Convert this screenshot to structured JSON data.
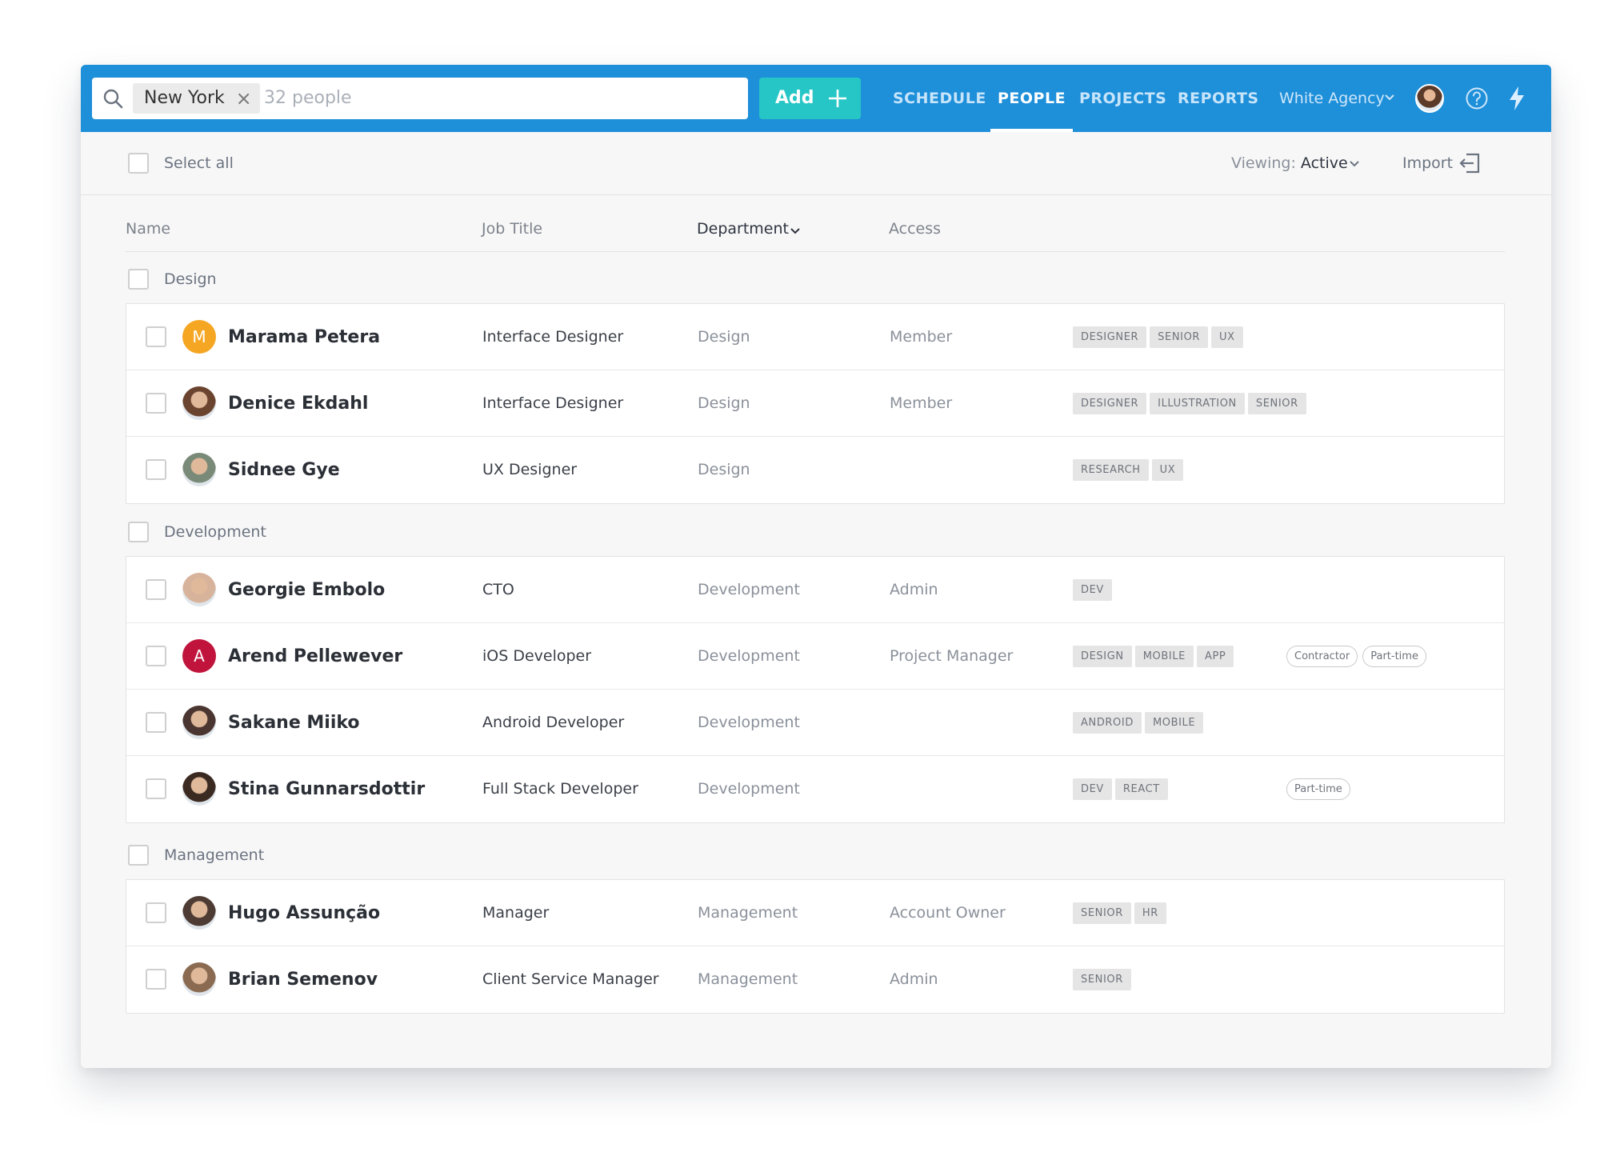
{
  "search": {
    "chip_label": "New York",
    "chip_close": "×",
    "placeholder": "32 people"
  },
  "add_button": {
    "label": "Add"
  },
  "nav": [
    {
      "label": "SCHEDULE",
      "active": false
    },
    {
      "label": "PEOPLE",
      "active": true
    },
    {
      "label": "PROJECTS",
      "active": false
    },
    {
      "label": "REPORTS",
      "active": false
    }
  ],
  "account": {
    "agency": "White Agency"
  },
  "toolbar": {
    "select_all": "Select all",
    "viewing_label": "Viewing:",
    "viewing_value": "Active",
    "import": "Import"
  },
  "columns": {
    "name": "Name",
    "job_title": "Job Title",
    "department": "Department",
    "access": "Access"
  },
  "groups": [
    {
      "title": "Design",
      "people": [
        {
          "name": "Marama Petera",
          "job": "Interface Designer",
          "dept": "Design",
          "access": "Member",
          "avatar_letter": "M",
          "avatar_color": "#f5a623",
          "tags": [
            "DESIGNER",
            "SENIOR",
            "UX"
          ],
          "pills": []
        },
        {
          "name": "Denice Ekdahl",
          "job": "Interface Designer",
          "dept": "Design",
          "access": "Member",
          "avatar_letter": "",
          "avatar_color": "#6b4430",
          "tags": [
            "DESIGNER",
            "ILLUSTRATION",
            "SENIOR"
          ],
          "pills": []
        },
        {
          "name": "Sidnee Gye",
          "job": "UX Designer",
          "dept": "Design",
          "access": "",
          "avatar_letter": "",
          "avatar_color": "#7a8a78",
          "tags": [
            "RESEARCH",
            "UX"
          ],
          "pills": []
        }
      ]
    },
    {
      "title": "Development",
      "people": [
        {
          "name": "Georgie Embolo",
          "job": "CTO",
          "dept": "Development",
          "access": "Admin",
          "avatar_letter": "",
          "avatar_color": "#d8b39c",
          "tags": [
            "DEV"
          ],
          "pills": []
        },
        {
          "name": "Arend Pellewever",
          "job": "iOS Developer",
          "dept": "Development",
          "access": "Project Manager",
          "avatar_letter": "A",
          "avatar_color": "#c0143c",
          "tags": [
            "DESIGN",
            "MOBILE",
            "APP"
          ],
          "pills": [
            "Contractor",
            "Part-time"
          ]
        },
        {
          "name": "Sakane Miiko",
          "job": "Android Developer",
          "dept": "Development",
          "access": "",
          "avatar_letter": "",
          "avatar_color": "#4a3530",
          "tags": [
            "ANDROID",
            "MOBILE"
          ],
          "pills": []
        },
        {
          "name": "Stina Gunnarsdottir",
          "job": "Full Stack Developer",
          "dept": "Development",
          "access": "",
          "avatar_letter": "",
          "avatar_color": "#3b2a22",
          "tags": [
            "DEV",
            "REACT"
          ],
          "pills": [
            "Part-time"
          ]
        }
      ]
    },
    {
      "title": "Management",
      "people": [
        {
          "name": "Hugo Assunção",
          "job": "Manager",
          "dept": "Management",
          "access": "Account Owner",
          "avatar_letter": "",
          "avatar_color": "#4e3b33",
          "tags": [
            "SENIOR",
            "HR"
          ],
          "pills": []
        },
        {
          "name": "Brian Semenov",
          "job": "Client Service Manager",
          "dept": "Management",
          "access": "Admin",
          "avatar_letter": "",
          "avatar_color": "#8a6b52",
          "tags": [
            "SENIOR"
          ],
          "pills": []
        }
      ]
    }
  ],
  "colors": {
    "topbar": "#1e8fd9",
    "add_button": "#26c6c6"
  },
  "icons": [
    "search-icon",
    "close-icon",
    "plus-icon",
    "chevron-down-icon",
    "help-icon",
    "bolt-icon",
    "import-icon"
  ]
}
